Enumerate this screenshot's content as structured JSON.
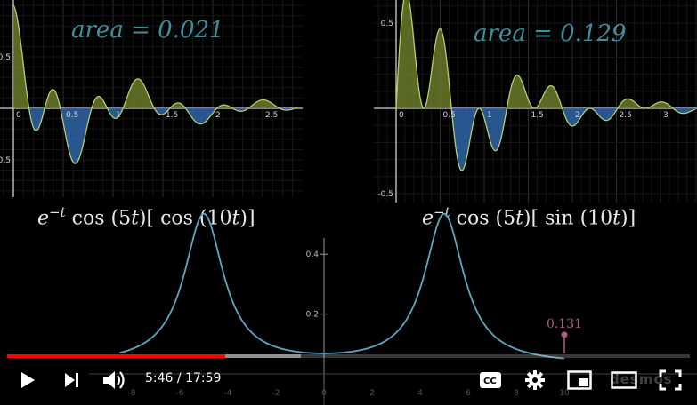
{
  "video": {
    "current_time": "5:46",
    "duration": "17:59",
    "time_separator": " / ",
    "played_fraction": 0.32,
    "buffered_fraction": 0.43,
    "watermark": "desmos"
  },
  "graphs": {
    "left": {
      "area_label": "area = 0.021",
      "formula": {
        "lead": "e",
        "exp": "−t",
        "mid": " cos (5",
        "var": "t",
        "tail": ")[ cos (10",
        "var2": "t",
        "end": ")]"
      },
      "x_ticks": [
        "0",
        "0.5",
        "1",
        "1.5",
        "2",
        "2.5"
      ],
      "y_ticks": [
        "0.5",
        "-0.5"
      ]
    },
    "right": {
      "area_label": "area = 0.129",
      "formula": {
        "lead": "e",
        "exp": "−t",
        "mid": " cos (5",
        "var": "t",
        "tail": ")[ sin (10",
        "var2": "t",
        "end": ")]"
      },
      "x_ticks": [
        "0",
        "0.5",
        "1",
        "1.5",
        "2",
        "2.5",
        "3"
      ],
      "y_ticks": [
        "0.5",
        "-0.5"
      ]
    },
    "bottom": {
      "x_ticks": [
        "-8",
        "-6",
        "-4",
        "-2",
        "0",
        "2",
        "4",
        "6",
        "8",
        "10"
      ],
      "y_ticks": [
        "0.4",
        "0.2"
      ],
      "point_label": "0.131"
    }
  },
  "colors": {
    "positive_fill": "#6b7a2a",
    "negative_fill": "#2c5f9e",
    "curve": "#5aa8c0",
    "point": "#b05a86",
    "progress": "#ff0000"
  },
  "icons": [
    "play-icon",
    "next-icon",
    "volume-icon",
    "captions-icon",
    "settings-icon",
    "miniplayer-icon",
    "theater-icon",
    "fullscreen-icon"
  ]
}
